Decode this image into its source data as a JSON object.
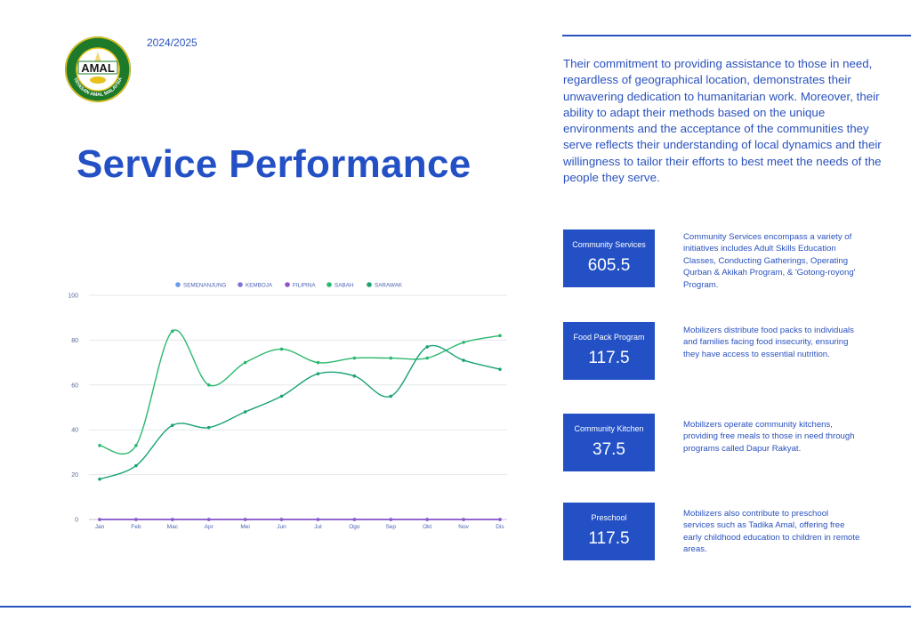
{
  "header": {
    "year": "2024/2025",
    "title": "Service Performance",
    "logo_text": "AMAL",
    "logo_ring_text": "YAYASAN AMAL MALAYSIA"
  },
  "intro": "Their commitment to providing assistance to those in need, regardless of geographical location, demonstrates their unwavering dedication to humanitarian work. Moreover, their ability to adapt their methods based on the unique environments and the acceptance of the communities they serve reflects their understanding of local dynamics and their willingness to tailor their efforts to best meet the needs of the people they serve.",
  "stats": [
    {
      "label": "Community Services",
      "value": "605.5",
      "desc": "Community Services encompass a variety of initiatives includes Adult Skills Education Classes, Conducting Gatherings, Operating Qurban & Akikah Program, & 'Gotong-royong' Program."
    },
    {
      "label": "Food Pack Program",
      "value": "117.5",
      "desc": "Mobilizers distribute food packs to individuals and families facing food insecurity, ensuring they have access to essential nutrition."
    },
    {
      "label": "Community Kitchen",
      "value": "37.5",
      "desc": "Mobilizers operate community kitchens, providing free meals to those in need through programs called Dapur Rakyat."
    },
    {
      "label": "Preschool",
      "value": "117.5",
      "desc": "Mobilizers also contribute to preschool services such as Tadika Amal, offering free early childhood education to children in remote areas."
    }
  ],
  "colors": {
    "accent": "#2350c4",
    "text": "#2a52be"
  },
  "chart_data": {
    "type": "line",
    "categories": [
      "Jan",
      "Feb",
      "Mac",
      "Apr",
      "Mei",
      "Jun",
      "Jul",
      "Ogo",
      "Sep",
      "Okt",
      "Nov",
      "Dis"
    ],
    "ylim": [
      0,
      100
    ],
    "yticks": [
      0,
      20,
      40,
      60,
      80,
      100
    ],
    "grid": true,
    "legend_position": "top",
    "series": [
      {
        "name": "SEMENANJUNG",
        "color": "#6a9ae8",
        "values": [
          0,
          0,
          0,
          0,
          0,
          0,
          0,
          0,
          0,
          0,
          0,
          0
        ]
      },
      {
        "name": "KEMBOJA",
        "color": "#7b74d6",
        "values": [
          0,
          0,
          0,
          0,
          0,
          0,
          0,
          0,
          0,
          0,
          0,
          0
        ]
      },
      {
        "name": "FILIPINA",
        "color": "#8e55c9",
        "values": [
          0,
          0,
          0,
          0,
          0,
          0,
          0,
          0,
          0,
          0,
          0,
          0
        ]
      },
      {
        "name": "SABAH",
        "color": "#2ab86f",
        "values": [
          33,
          33,
          84,
          60,
          70,
          76,
          70,
          72,
          72,
          72,
          79,
          82
        ]
      },
      {
        "name": "SARAWAK",
        "color": "#1aa374",
        "values": [
          18,
          24,
          42,
          41,
          48,
          55,
          65,
          64,
          55,
          77,
          71,
          67
        ]
      }
    ]
  }
}
